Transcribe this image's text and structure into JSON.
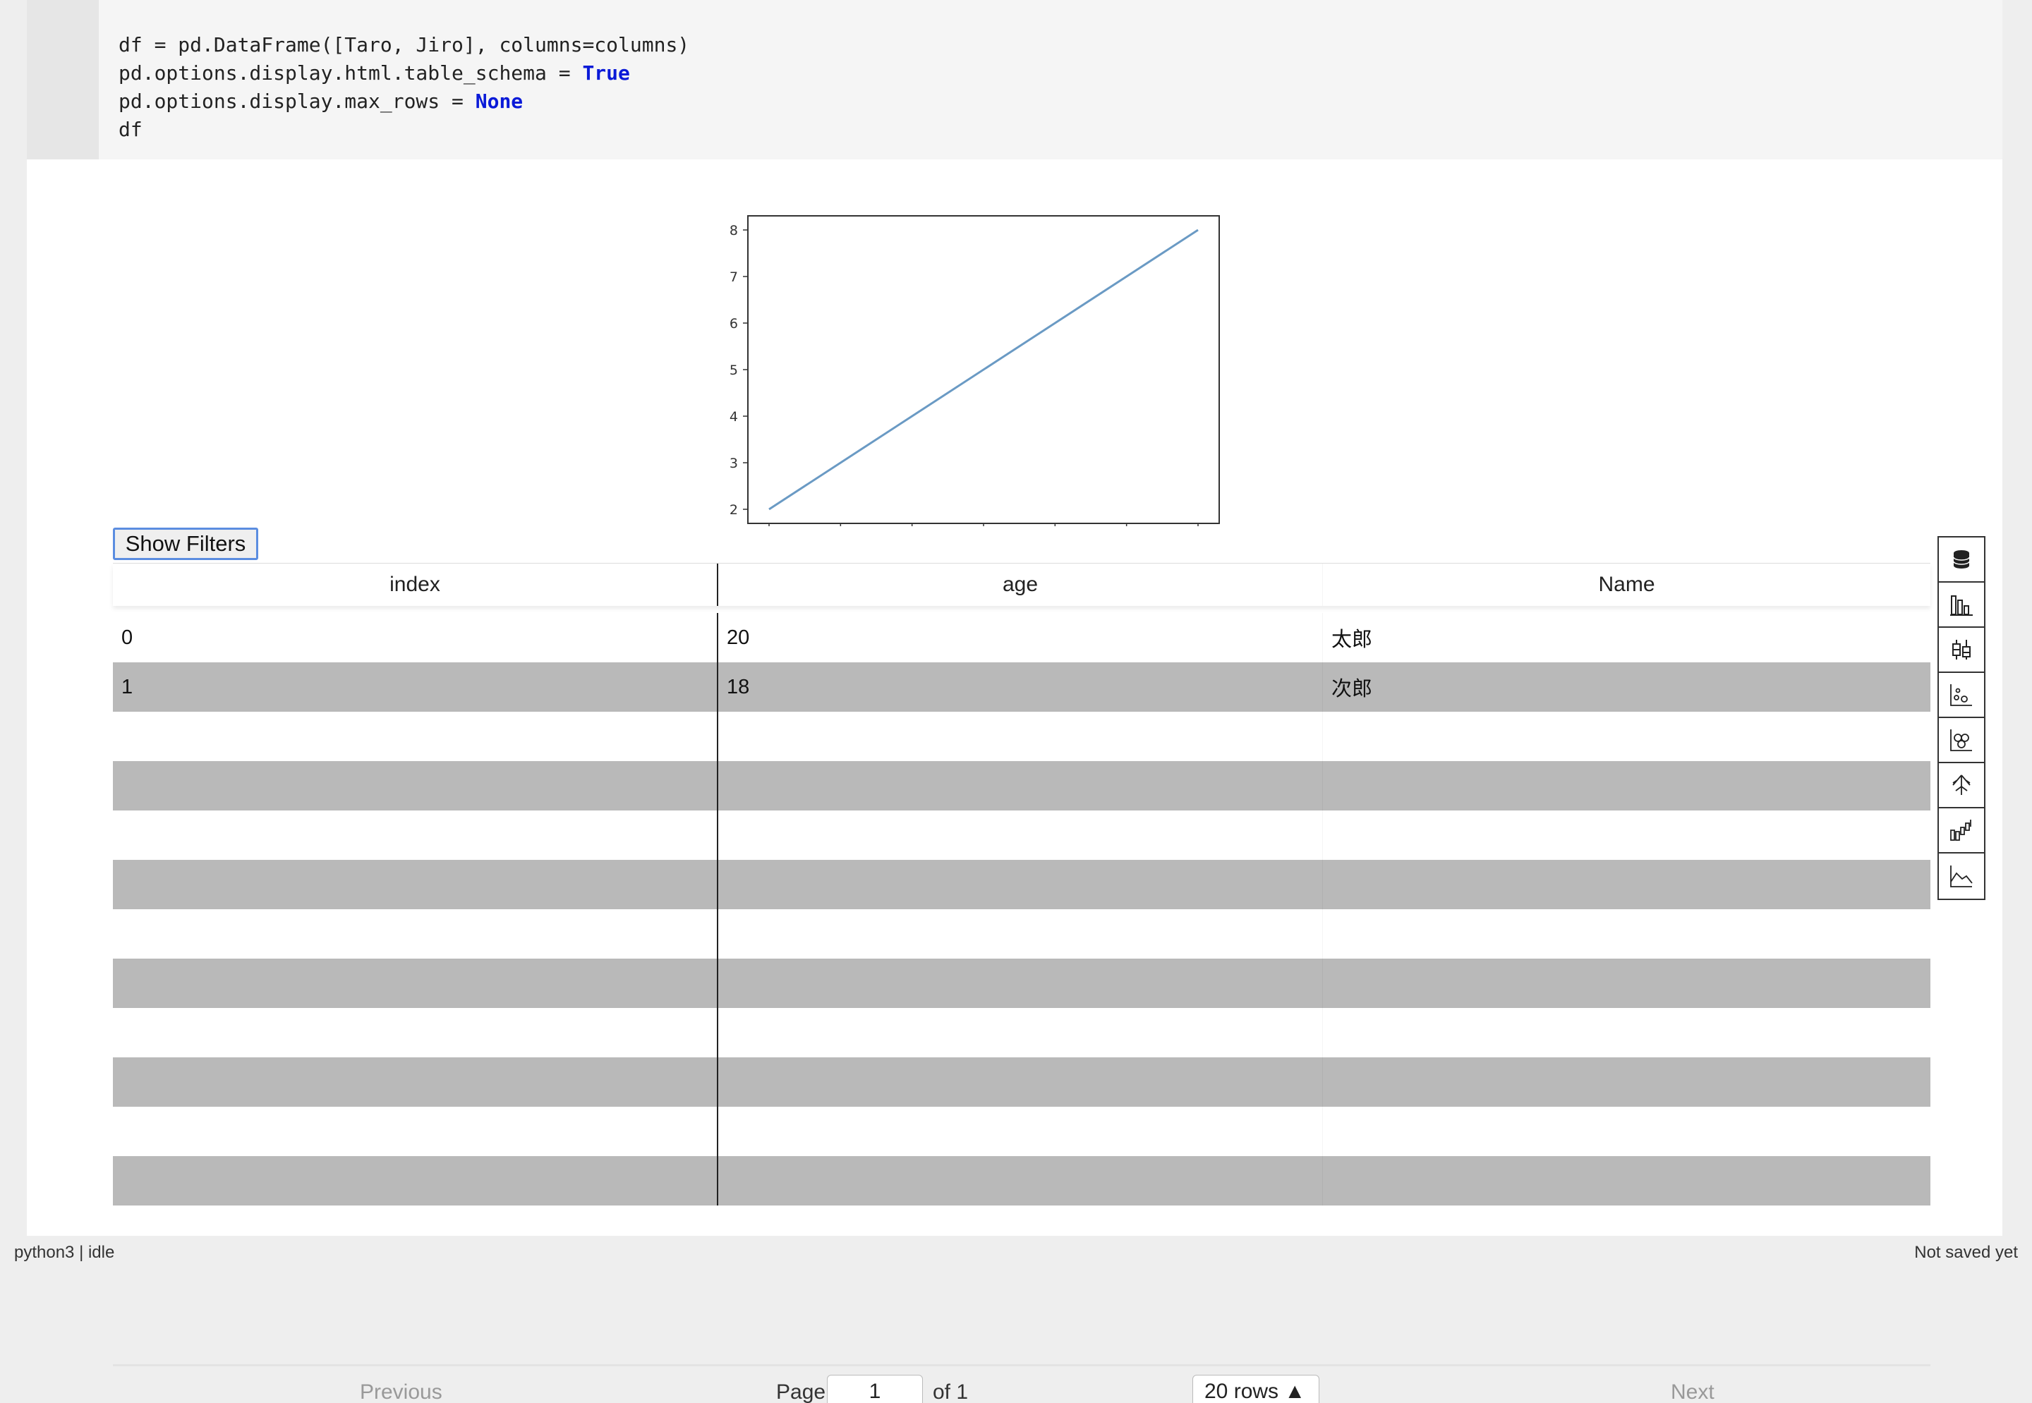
{
  "code": {
    "line1": "df = pd.DataFrame([Taro, Jiro], columns=columns)",
    "line2_prefix": "pd.options.display.html.table_schema = ",
    "line2_kw": "True",
    "line3_prefix": "pd.options.display.max_rows = ",
    "line3_kw": "None",
    "line4": "df"
  },
  "chart_data": {
    "type": "line",
    "x": [
      1.0,
      2.0,
      3.0,
      4.0
    ],
    "series": [
      {
        "values": [
          2,
          4,
          6,
          8
        ]
      }
    ],
    "xlim": [
      1.0,
      4.0
    ],
    "ylim": [
      2,
      8
    ],
    "x_ticks": [
      "1.0",
      "1.5",
      "2.0",
      "2.5",
      "3.0",
      "3.5",
      "4.0"
    ],
    "y_ticks": [
      "2",
      "3",
      "4",
      "5",
      "6",
      "7",
      "8"
    ],
    "grid": false,
    "line_color": "#6a9ac4"
  },
  "filters": {
    "show_label": "Show Filters"
  },
  "table": {
    "columns": [
      "index",
      "age",
      "Name"
    ],
    "rows": [
      [
        "0",
        "20",
        "太郎"
      ],
      [
        "1",
        "18",
        "次郎"
      ]
    ],
    "row_colors": {
      "even": "#ffffff",
      "odd": "#b9b9b9"
    }
  },
  "pager": {
    "previous": "Previous",
    "page_label": "Page",
    "page_value": "1",
    "of_label": "of 1",
    "rows_value": "20 rows",
    "next": "Next"
  },
  "toolbar": {
    "icons": [
      "database-icon",
      "bar-chart-icon",
      "box-plot-icon",
      "scatter-icon",
      "bubble-icon",
      "tree-icon",
      "waterfall-icon",
      "area-chart-icon"
    ]
  },
  "status": {
    "kernel": "python3 | idle",
    "save_state": "Not saved yet"
  }
}
